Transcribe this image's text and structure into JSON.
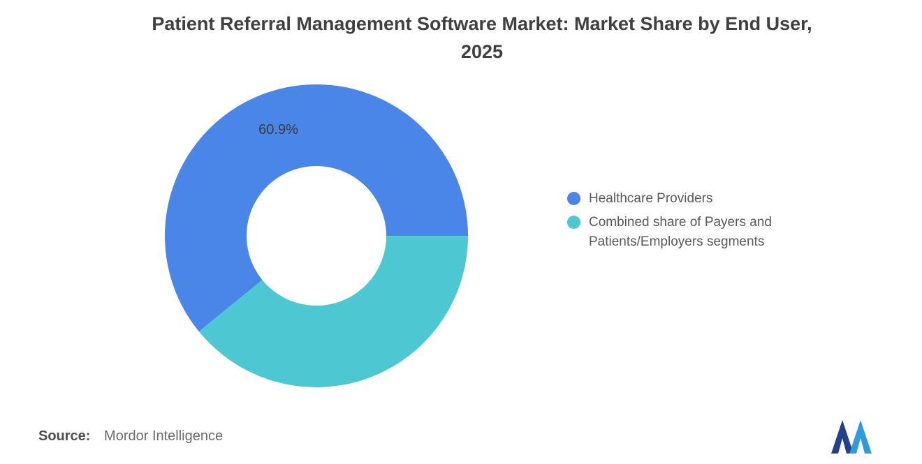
{
  "title": {
    "line1": "Patient Referral Management Software Market: Market Share by End User,",
    "line2": "2025"
  },
  "chart_data": {
    "type": "pie",
    "subtype": "donut",
    "title": "Patient Referral Management Software Market: Market Share by End User, 2025",
    "series": [
      {
        "name": "Healthcare Providers",
        "value": 60.9,
        "color": "#4A86E8",
        "data_label": "60.9%",
        "show_label": true
      },
      {
        "name": "Combined share of Payers and Patients/Employers segments",
        "value": 39.1,
        "color": "#4DC8D2",
        "data_label": "",
        "show_label": false
      }
    ],
    "start_angle_deg": 230.8,
    "outer_radius": 217,
    "inner_radius": 100,
    "legend_position": "right",
    "grid": false
  },
  "legend": {
    "items": [
      {
        "label": "Healthcare Providers",
        "color": "#4A86E8"
      },
      {
        "label": "Combined share of Payers and Patients/Employers segments",
        "color": "#4DC8D2"
      }
    ]
  },
  "source": {
    "prefix": "Source:",
    "text": "Mordor Intelligence"
  },
  "logo": {
    "name": "mordor-intelligence-logo",
    "colors": {
      "left": "#23408F",
      "right": "#2D9CDB"
    }
  }
}
